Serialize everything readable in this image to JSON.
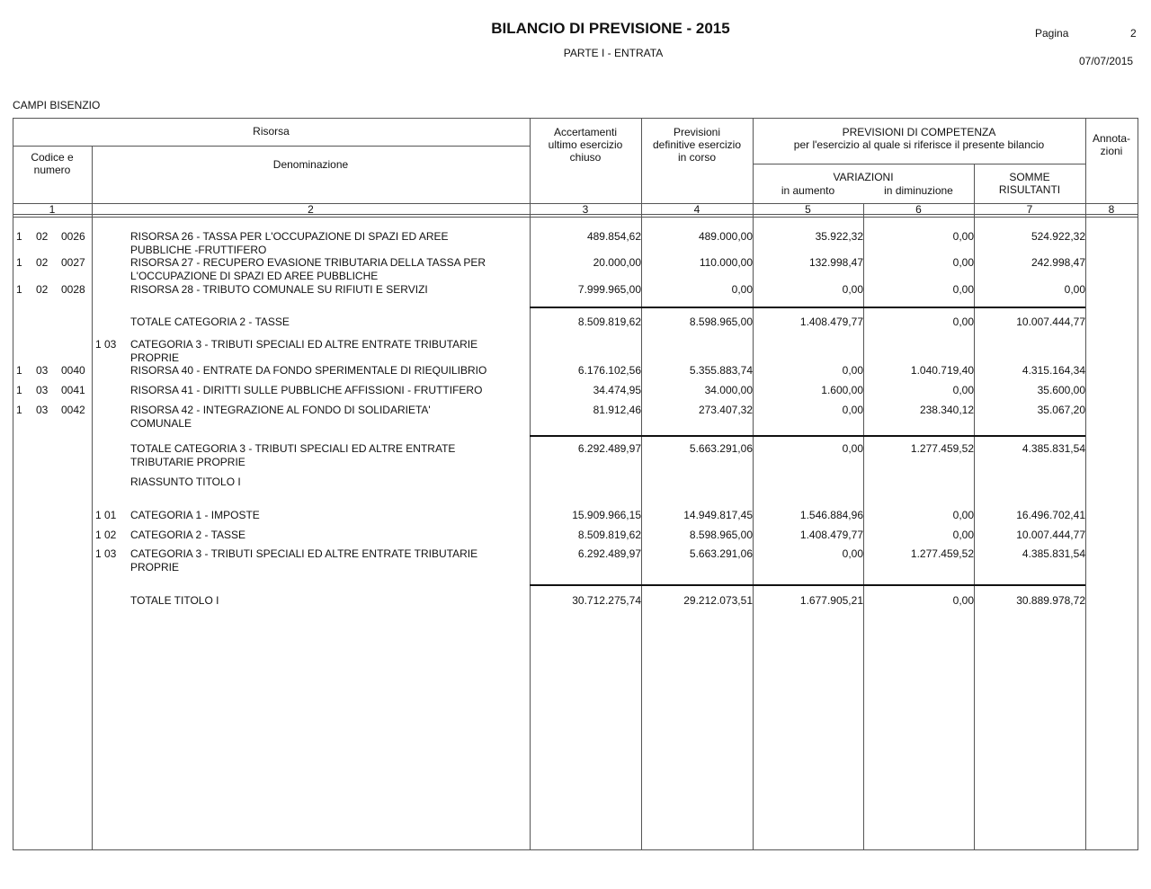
{
  "header": {
    "title": "BILANCIO DI PREVISIONE - 2015",
    "subtitle": "PARTE I - ENTRATA",
    "page_label": "Pagina",
    "page_number": "2",
    "date": "07/07/2015",
    "entity": "CAMPI BISENZIO"
  },
  "table_header": {
    "risorsa": "Risorsa",
    "codice": [
      "Codice e",
      "numero"
    ],
    "denominazione": "Denominazione",
    "accertamenti": [
      "Accertamenti",
      "ultimo esercizio",
      "chiuso"
    ],
    "previsioni_definitive": [
      "Previsioni",
      "definitive esercizio",
      "in corso"
    ],
    "previsioni_competenza": [
      "PREVISIONI DI COMPETENZA",
      "per l'esercizio al quale si riferisce il presente bilancio"
    ],
    "variazioni": "VARIAZIONI",
    "in_aumento": "in aumento",
    "in_diminuzione": "in diminuzione",
    "somme": [
      "SOMME",
      "RISULTANTI"
    ],
    "annotazioni": [
      "Annota-",
      "zioni"
    ],
    "column_numbers": [
      "1",
      "2",
      "3",
      "4",
      "5",
      "6",
      "7",
      "8"
    ]
  },
  "rows": [
    {
      "code": [
        "1",
        "02",
        "0026"
      ],
      "desc": [
        "RISORSA 26 - TASSA PER L'OCCUPAZIONE DI SPAZI ED AREE",
        "PUBBLICHE  -FRUTTIFERO"
      ],
      "values": [
        "489.854,62",
        "489.000,00",
        "35.922,32",
        "0,00",
        "524.922,32"
      ]
    },
    {
      "code": [
        "1",
        "02",
        "0027"
      ],
      "desc": [
        "RISORSA 27 - RECUPERO EVASIONE TRIBUTARIA DELLA TASSA PER",
        "L'OCCUPAZIONE DI SPAZI ED AREE PUBBLICHE"
      ],
      "values": [
        "20.000,00",
        "110.000,00",
        "132.998,47",
        "0,00",
        "242.998,47"
      ]
    },
    {
      "code": [
        "1",
        "02",
        "0028"
      ],
      "desc": [
        "RISORSA 28 - TRIBUTO COMUNALE SU RIFIUTI E SERVIZI"
      ],
      "values": [
        "7.999.965,00",
        "0,00",
        "0,00",
        "0,00",
        "0,00"
      ]
    },
    {
      "desc": [
        "TOTALE CATEGORIA 2 - TASSE"
      ],
      "values": [
        "8.509.819,62",
        "8.598.965,00",
        "1.408.479,77",
        "0,00",
        "10.007.444,77"
      ]
    },
    {
      "cat": [
        "1",
        "03"
      ],
      "desc": [
        "CATEGORIA 3 - TRIBUTI SPECIALI ED ALTRE ENTRATE TRIBUTARIE",
        "PROPRIE"
      ]
    },
    {
      "code": [
        "1",
        "03",
        "0040"
      ],
      "desc": [
        "RISORSA 40 - ENTRATE DA FONDO SPERIMENTALE DI RIEQUILIBRIO"
      ],
      "values": [
        "6.176.102,56",
        "5.355.883,74",
        "0,00",
        "1.040.719,40",
        "4.315.164,34"
      ]
    },
    {
      "code": [
        "1",
        "03",
        "0041"
      ],
      "desc": [
        "RISORSA 41 - DIRITTI SULLE PUBBLICHE AFFISSIONI - FRUTTIFERO"
      ],
      "values": [
        "34.474,95",
        "34.000,00",
        "1.600,00",
        "0,00",
        "35.600,00"
      ]
    },
    {
      "code": [
        "1",
        "03",
        "0042"
      ],
      "desc": [
        "RISORSA 42 - INTEGRAZIONE AL FONDO DI SOLIDARIETA'",
        "COMUNALE"
      ],
      "values": [
        "81.912,46",
        "273.407,32",
        "0,00",
        "238.340,12",
        "35.067,20"
      ]
    },
    {
      "desc": [
        "TOTALE CATEGORIA 3 - TRIBUTI SPECIALI ED ALTRE ENTRATE",
        "TRIBUTARIE PROPRIE"
      ],
      "values": [
        "6.292.489,97",
        "5.663.291,06",
        "0,00",
        "1.277.459,52",
        "4.385.831,54"
      ]
    },
    {
      "desc": [
        "RIASSUNTO TITOLO I"
      ]
    },
    {
      "cat": [
        "1",
        "01"
      ],
      "desc": [
        "CATEGORIA 1 - IMPOSTE"
      ],
      "values": [
        "15.909.966,15",
        "14.949.817,45",
        "1.546.884,96",
        "0,00",
        "16.496.702,41"
      ]
    },
    {
      "cat": [
        "1",
        "02"
      ],
      "desc": [
        "CATEGORIA 2 - TASSE"
      ],
      "values": [
        "8.509.819,62",
        "8.598.965,00",
        "1.408.479,77",
        "0,00",
        "10.007.444,77"
      ]
    },
    {
      "cat": [
        "1",
        "03"
      ],
      "desc": [
        "CATEGORIA 3 - TRIBUTI SPECIALI ED ALTRE ENTRATE TRIBUTARIE",
        "PROPRIE"
      ],
      "values": [
        "6.292.489,97",
        "5.663.291,06",
        "0,00",
        "1.277.459,52",
        "4.385.831,54"
      ]
    },
    {
      "desc": [
        "TOTALE TITOLO I"
      ],
      "values": [
        "30.712.275,74",
        "29.212.073,51",
        "1.677.905,21",
        "0,00",
        "30.889.978,72"
      ]
    }
  ]
}
